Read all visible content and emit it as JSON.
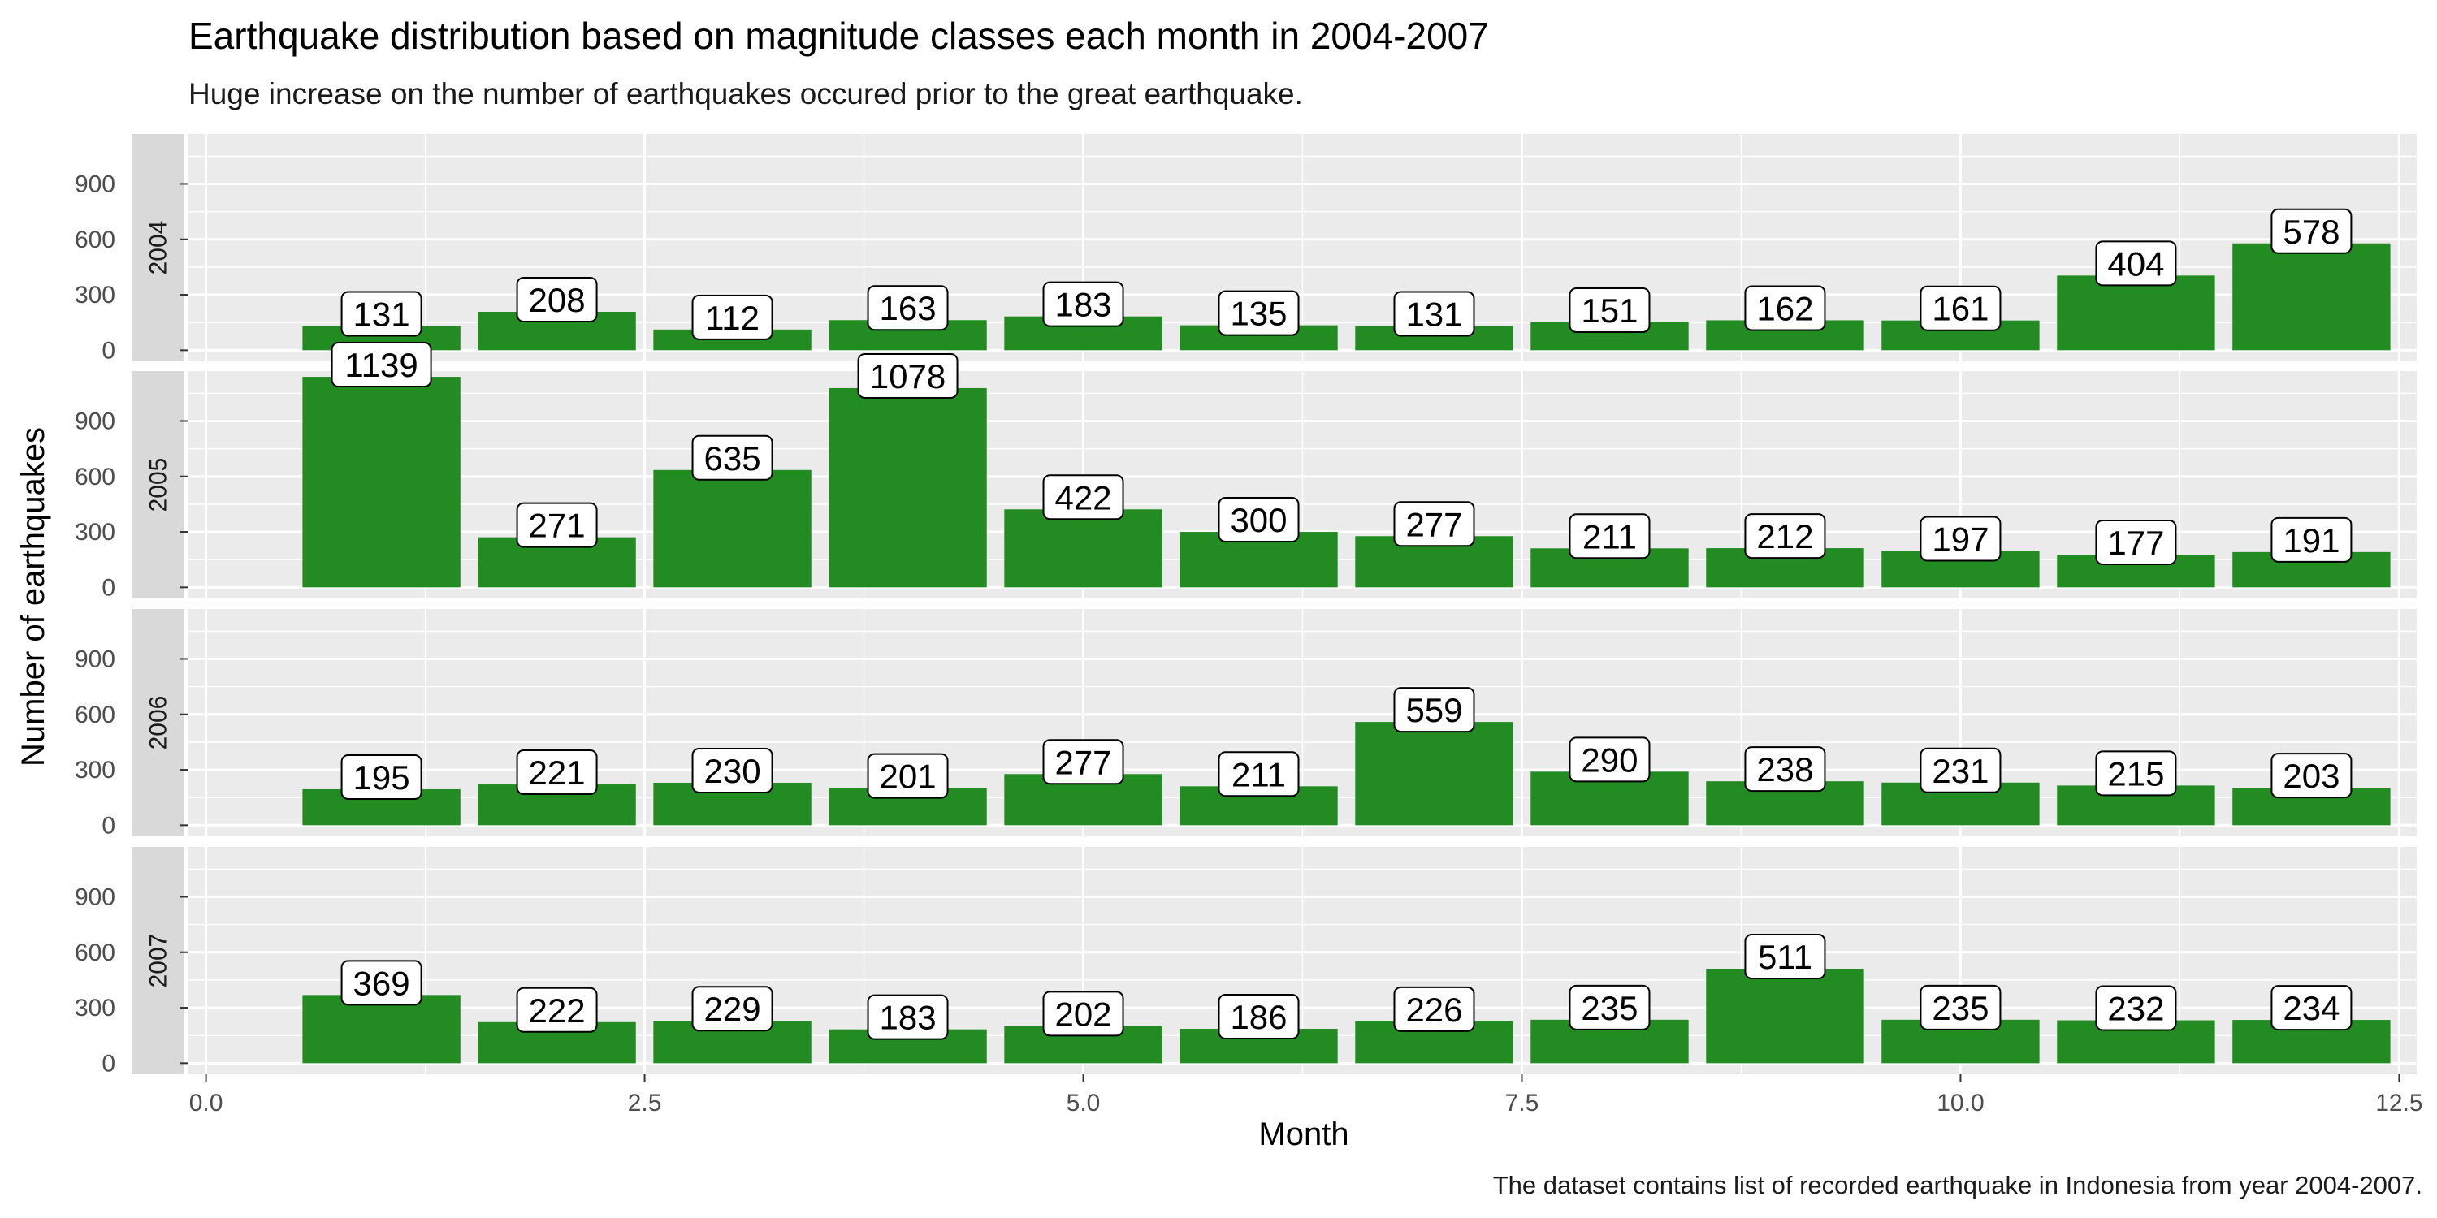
{
  "chart_data": {
    "type": "bar",
    "title": "Earthquake distribution based on magnitude classes each month in 2004-2007",
    "subtitle": "Huge increase on the number of earthquakes occured prior to the great earthquake.",
    "caption": "The dataset contains list of recorded earthquake in Indonesia from year 2004-2007.",
    "xlabel": "Month",
    "ylabel": "Number of earthquakes",
    "xlim": [
      -0.1,
      12.6
    ],
    "ylim": [
      -60,
      1170
    ],
    "x_ticks": [
      "0.0",
      "2.5",
      "5.0",
      "7.5",
      "10.0",
      "12.5"
    ],
    "y_ticks": [
      "0",
      "300",
      "600",
      "900"
    ],
    "bar_color": "#228B22",
    "panel_bg": "#EBEBEB",
    "strip_bg": "#D9D9D9",
    "grid": true,
    "categories": [
      1,
      2,
      3,
      4,
      5,
      6,
      7,
      8,
      9,
      10,
      11,
      12
    ],
    "panels": [
      {
        "name": "2004",
        "values": [
          131,
          208,
          112,
          163,
          183,
          135,
          131,
          151,
          162,
          161,
          404,
          578
        ]
      },
      {
        "name": "2005",
        "values": [
          1139,
          271,
          635,
          1078,
          422,
          300,
          277,
          211,
          212,
          197,
          177,
          191
        ]
      },
      {
        "name": "2006",
        "values": [
          195,
          221,
          230,
          201,
          277,
          211,
          559,
          290,
          238,
          231,
          215,
          203
        ]
      },
      {
        "name": "2007",
        "values": [
          369,
          222,
          229,
          183,
          202,
          186,
          226,
          235,
          511,
          235,
          232,
          234
        ]
      }
    ]
  }
}
